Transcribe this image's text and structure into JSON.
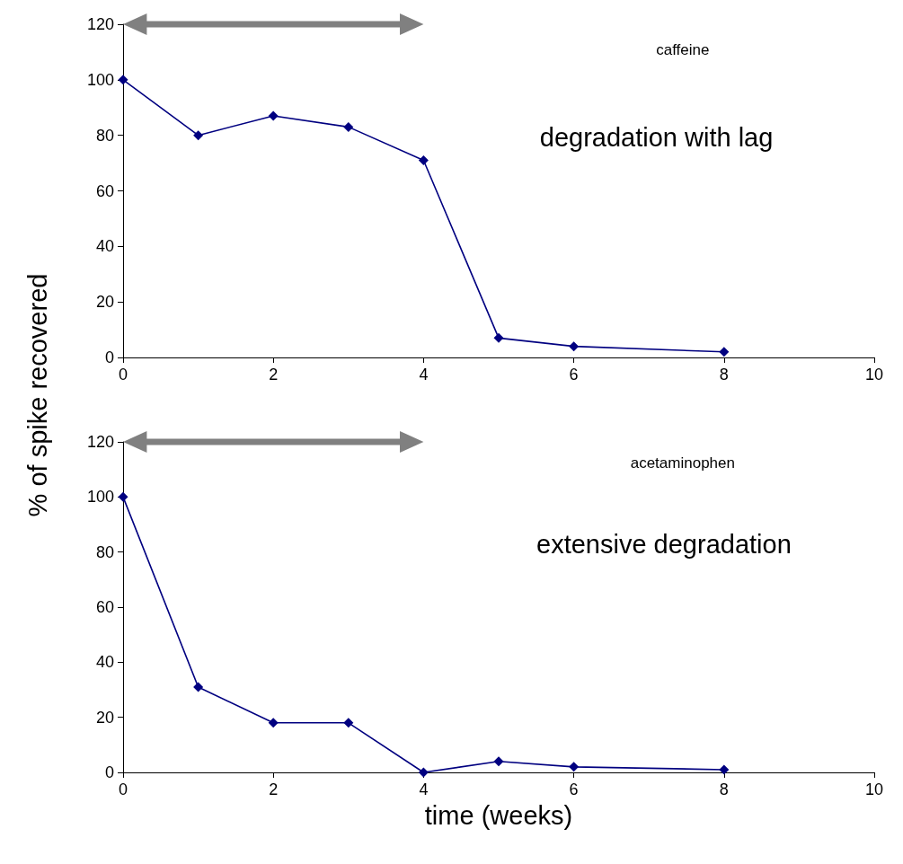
{
  "chart_data": [
    {
      "type": "line",
      "x": [
        0,
        1,
        2,
        3,
        4,
        5,
        6,
        8
      ],
      "series": [
        {
          "color": "#000080",
          "values": [
            100,
            80,
            87,
            83,
            71,
            7,
            4,
            2
          ]
        }
      ],
      "xlim": [
        0,
        10
      ],
      "xticks": [
        0,
        2,
        4,
        6,
        8,
        10
      ],
      "ylim": [
        0,
        120
      ],
      "yticks": [
        0,
        20,
        40,
        60,
        80,
        100,
        120
      ],
      "ylabel": "% of spike recovered",
      "annotations": [
        "caffeine",
        "degradation with lag"
      ],
      "marker": "diamond",
      "line_style": "solid",
      "grid": false
    },
    {
      "type": "line",
      "x": [
        0,
        1,
        2,
        3,
        4,
        5,
        6,
        8
      ],
      "series": [
        {
          "color": "#000080",
          "values": [
            100,
            31,
            18,
            18,
            0,
            4,
            2,
            1
          ]
        }
      ],
      "xlim": [
        0,
        10
      ],
      "xticks": [
        0,
        2,
        4,
        6,
        8,
        10
      ],
      "ylim": [
        0,
        120
      ],
      "yticks": [
        0,
        20,
        40,
        60,
        80,
        100,
        120
      ],
      "xlabel": "time (weeks)",
      "annotations": [
        "acetaminophen",
        "extensive degradation"
      ],
      "marker": "diamond",
      "line_style": "solid",
      "grid": false
    }
  ]
}
